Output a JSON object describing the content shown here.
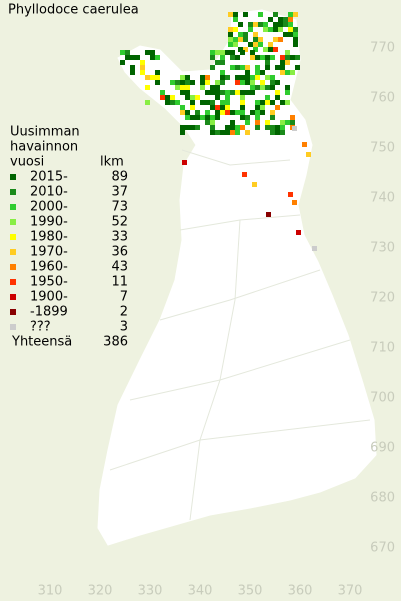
{
  "title": "Phyllodoce caerulea",
  "legend": {
    "heading": [
      "Uusimman",
      "havainnon",
      "vuosi"
    ],
    "count_heading": "lkm",
    "rows": [
      {
        "label": "2015-",
        "color": "#006400",
        "count": 89
      },
      {
        "label": "2010-",
        "color": "#1a8a1a",
        "count": 37
      },
      {
        "label": "2000-",
        "color": "#2fcc2f",
        "count": 73
      },
      {
        "label": "1990-",
        "color": "#88ee44",
        "count": 52
      },
      {
        "label": "1980-",
        "color": "#ffff00",
        "count": 33
      },
      {
        "label": "1970-",
        "color": "#ffcc22",
        "count": 36
      },
      {
        "label": "1960-",
        "color": "#ff8000",
        "count": 43
      },
      {
        "label": "1950-",
        "color": "#ff3300",
        "count": 11
      },
      {
        "label": "1900-",
        "color": "#cc0000",
        "count": 7
      },
      {
        "label": "-1899",
        "color": "#880000",
        "count": 2
      },
      {
        "label": "???",
        "color": "#cccccc",
        "count": 3
      }
    ],
    "total_label": "Yhteensä",
    "total": 386
  },
  "xticks": [
    310,
    320,
    330,
    340,
    350,
    360,
    370
  ],
  "yticks": [
    670,
    680,
    690,
    700,
    710,
    720,
    730,
    740,
    750,
    760,
    770
  ]
}
